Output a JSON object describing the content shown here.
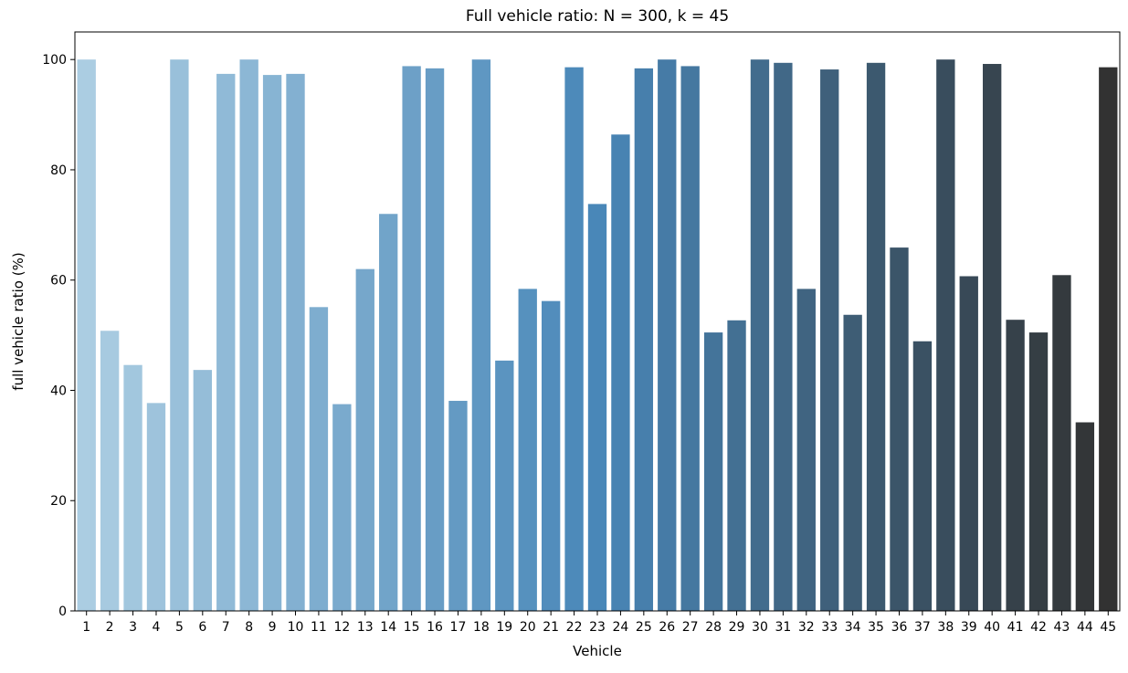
{
  "chart_data": {
    "type": "bar",
    "title": "Full vehicle ratio: N = 300, k = 45",
    "xlabel": "Vehicle",
    "ylabel": "full vehicle ratio (%)",
    "ylim": [
      0,
      105
    ],
    "yticks": [
      0,
      20,
      40,
      60,
      80,
      100
    ],
    "grid": false,
    "legend": "none",
    "categories": [
      "1",
      "2",
      "3",
      "4",
      "5",
      "6",
      "7",
      "8",
      "9",
      "10",
      "11",
      "12",
      "13",
      "14",
      "15",
      "16",
      "17",
      "18",
      "19",
      "20",
      "21",
      "22",
      "23",
      "24",
      "25",
      "26",
      "27",
      "28",
      "29",
      "30",
      "31",
      "32",
      "33",
      "34",
      "35",
      "36",
      "37",
      "38",
      "39",
      "40",
      "41",
      "42",
      "43",
      "44",
      "45"
    ],
    "values": [
      100,
      50.8,
      44.6,
      37.7,
      100,
      43.7,
      97.4,
      100,
      97.2,
      97.4,
      55.1,
      37.5,
      62.0,
      72.0,
      98.8,
      98.4,
      38.1,
      100,
      45.4,
      58.4,
      56.2,
      98.6,
      73.8,
      86.4,
      98.4,
      100,
      98.8,
      50.5,
      52.7,
      100,
      99.4,
      58.4,
      98.2,
      53.7,
      99.4,
      65.9,
      48.9,
      100,
      60.7,
      99.2,
      52.8,
      50.5,
      60.9,
      34.2,
      98.6
    ],
    "colors": {
      "palette_start": "#abcde2",
      "palette_mid": "#4987b8",
      "palette_end": "#323232"
    }
  }
}
